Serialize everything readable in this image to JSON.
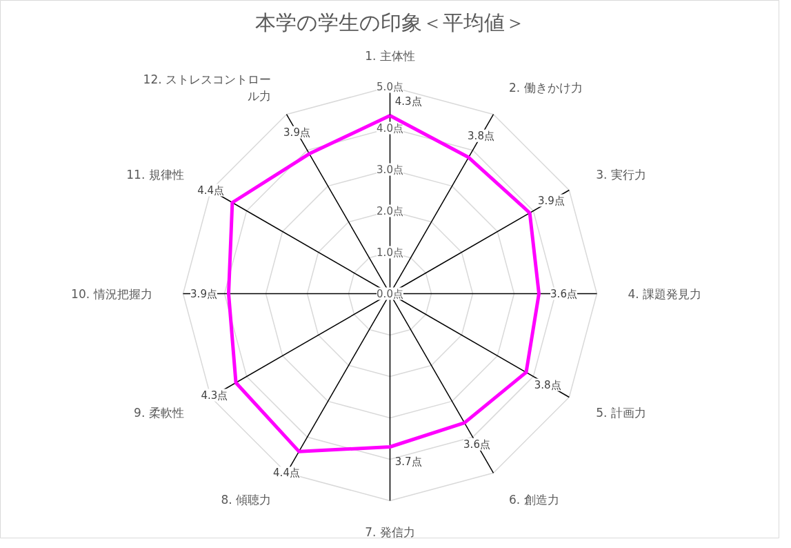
{
  "chart_data": {
    "type": "radar",
    "title": "本学の学生の印象＜平均値＞",
    "categories": [
      "1. 主体性",
      "2. 働きかけ力",
      "3. 実行力",
      "4. 課題発見力",
      "5. 計画力",
      "6. 創造力",
      "7. 発信力",
      "8. 傾聴力",
      "9. 柔軟性",
      "10. 情況把握力",
      "11. 規律性",
      "12. ストレスコントロール力"
    ],
    "series": [
      {
        "color": "#ff00ff",
        "values": [
          4.3,
          3.8,
          3.9,
          3.6,
          3.8,
          3.6,
          3.7,
          4.4,
          4.3,
          3.9,
          4.4,
          3.9
        ],
        "value_labels": [
          "4.3点",
          "3.8点",
          "3.9点",
          "3.6点",
          "3.8点",
          "3.6点",
          "3.7点",
          "4.4点",
          "4.3点",
          "3.9点",
          "4.4点",
          "3.9点"
        ]
      }
    ],
    "ylim": [
      0,
      5
    ],
    "yticks": [
      {
        "value": 0,
        "label": "0.0点"
      },
      {
        "value": 1,
        "label": "1.0点"
      },
      {
        "value": 2,
        "label": "2.0点"
      },
      {
        "value": 3,
        "label": "3.0点"
      },
      {
        "value": 4,
        "label": "4.0点"
      },
      {
        "value": 5,
        "label": "5.0点"
      }
    ],
    "grid": true,
    "marker": "none",
    "line_style": "solid"
  }
}
